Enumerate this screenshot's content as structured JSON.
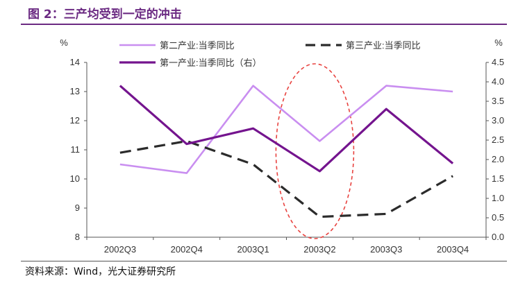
{
  "figure": {
    "title": "图 2：三产均受到一定的冲击",
    "source": "资料来源：Wind，光大证券研究所"
  },
  "colors": {
    "title": "#6b2a82",
    "secondary_industry": "#c98ef0",
    "tertiary_industry": "#2b2b2b",
    "primary_industry": "#74148e",
    "highlight_ellipse": "#e8423f"
  },
  "chart_data": {
    "type": "line",
    "title": "",
    "categories": [
      "2002Q3",
      "2002Q4",
      "2003Q1",
      "2003Q2",
      "2003Q3",
      "2003Q4"
    ],
    "y_left": {
      "label": "%",
      "range": [
        8,
        14
      ],
      "ticks": [
        "8",
        "9",
        "10",
        "11",
        "12",
        "13",
        "14"
      ]
    },
    "y_right": {
      "label": "%",
      "range": [
        0,
        4.5
      ],
      "ticks": [
        "0.0",
        "0.5",
        "1.0",
        "1.5",
        "2.0",
        "2.5",
        "3.0",
        "3.5",
        "4.0",
        "4.5"
      ]
    },
    "grid": false,
    "legend_position": "top",
    "series": [
      {
        "name": "第二产业:当季同比",
        "axis": "left",
        "style": "solid",
        "values": [
          10.5,
          10.2,
          13.2,
          11.3,
          13.2,
          13.0
        ]
      },
      {
        "name": "第三产业:当季同比",
        "axis": "left",
        "style": "dashed",
        "values": [
          10.9,
          11.3,
          10.5,
          8.7,
          8.8,
          10.1
        ]
      },
      {
        "name": "第一产业:当季同比（右）",
        "axis": "right",
        "style": "solid",
        "values": [
          3.9,
          2.4,
          2.8,
          1.7,
          3.3,
          1.9
        ]
      }
    ],
    "annotation": {
      "type": "dashed-ellipse",
      "around_category": "2003Q2"
    }
  }
}
